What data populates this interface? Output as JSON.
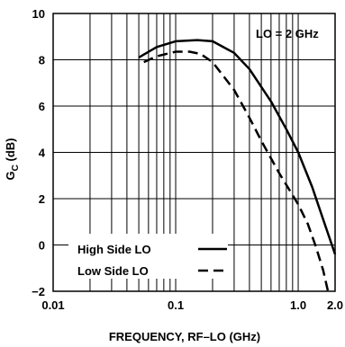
{
  "chart_data": {
    "type": "line",
    "xlabel": "FREQUENCY, RF–LO (GHz)",
    "ylabel_main": "G",
    "ylabel_sub": "C",
    "ylabel_unit": " (dB)",
    "x_scale": "log",
    "xlim": [
      0.01,
      2.0
    ],
    "ylim": [
      -2,
      10
    ],
    "x_ticks": [
      {
        "value": 0.01,
        "label": "0.01"
      },
      {
        "value": 0.1,
        "label": "0.1"
      },
      {
        "value": 1.0,
        "label": "1.0"
      },
      {
        "value": 2.0,
        "label": "2.0"
      }
    ],
    "y_ticks": [
      {
        "value": 10,
        "label": "10"
      },
      {
        "value": 8,
        "label": "8"
      },
      {
        "value": 6,
        "label": "6"
      },
      {
        "value": 4,
        "label": "4"
      },
      {
        "value": 2,
        "label": "2"
      },
      {
        "value": 0,
        "label": "0"
      },
      {
        "value": -2,
        "label": "−2"
      }
    ],
    "grid": true,
    "annotation": "LO = 2 GHz",
    "series": [
      {
        "name": "High Side LO",
        "style": "solid",
        "x": [
          0.05,
          0.07,
          0.1,
          0.15,
          0.2,
          0.3,
          0.4,
          0.6,
          0.8,
          1.0,
          1.3,
          1.6,
          2.0
        ],
        "y": [
          8.1,
          8.55,
          8.8,
          8.85,
          8.8,
          8.3,
          7.6,
          6.2,
          5.0,
          4.0,
          2.5,
          1.1,
          -0.4
        ]
      },
      {
        "name": "Low Side LO",
        "style": "dashed",
        "x": [
          0.055,
          0.07,
          0.1,
          0.13,
          0.16,
          0.2,
          0.3,
          0.4,
          0.5,
          0.7,
          1.0,
          1.2,
          1.4,
          1.6,
          1.75
        ],
        "y": [
          7.9,
          8.15,
          8.35,
          8.35,
          8.25,
          7.9,
          6.7,
          5.5,
          4.5,
          3.1,
          1.75,
          0.9,
          -0.1,
          -1.1,
          -2.0
        ]
      }
    ],
    "legend_position": "bottom-left"
  }
}
